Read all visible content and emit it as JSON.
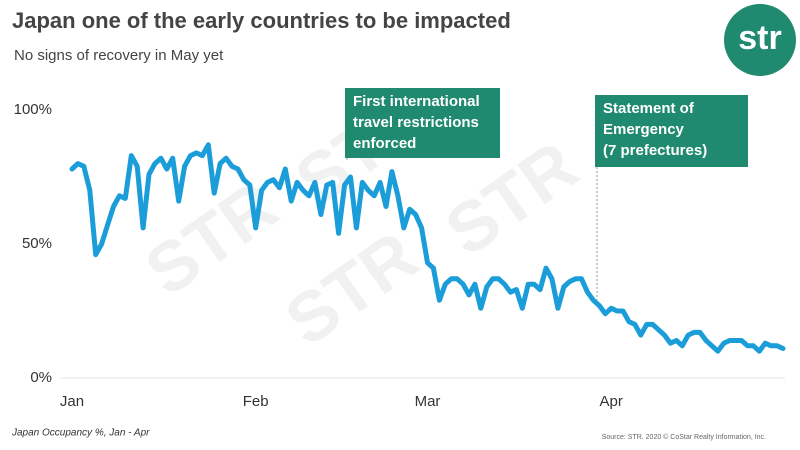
{
  "chart_data": {
    "type": "line",
    "title": "Japan one of the early countries to be impacted",
    "subtitle": "No signs of recovery in May yet",
    "footnote": "Japan Occupancy %, Jan - Apr",
    "source": "Source: STR. 2020 © CoStar Realty Information, Inc.",
    "logo": "str",
    "watermark": "STR",
    "annotations": [
      {
        "lines": [
          "First international",
          "travel restrictions",
          "enforced"
        ]
      },
      {
        "lines": [
          "Statement of",
          "Emergency",
          "(7 prefectures)"
        ]
      }
    ],
    "categories": [
      "Jan",
      null,
      null,
      null,
      null,
      null,
      null,
      null,
      null,
      null,
      null,
      null,
      null,
      null,
      null,
      null,
      null,
      null,
      null,
      null,
      null,
      null,
      null,
      null,
      null,
      null,
      null,
      null,
      null,
      null,
      null,
      "Feb",
      null,
      null,
      null,
      null,
      null,
      null,
      null,
      null,
      null,
      null,
      null,
      null,
      null,
      null,
      null,
      null,
      null,
      null,
      null,
      null,
      null,
      null,
      null,
      null,
      null,
      null,
      null,
      null,
      "Mar",
      null,
      null,
      null,
      null,
      null,
      null,
      null,
      null,
      null,
      null,
      null,
      null,
      null,
      null,
      null,
      null,
      null,
      null,
      null,
      null,
      null,
      null,
      null,
      null,
      null,
      null,
      null,
      null,
      null,
      null,
      "Apr",
      null,
      null,
      null,
      null,
      null,
      null,
      null,
      null,
      null,
      null,
      null,
      null,
      null,
      null,
      null,
      null,
      null,
      null,
      null,
      null,
      null,
      null,
      null,
      null,
      null,
      null,
      null,
      null,
      null
    ],
    "values": [
      78,
      80,
      79,
      70,
      46,
      50,
      57,
      64,
      68,
      67,
      83,
      79,
      56,
      76,
      80,
      82,
      78,
      82,
      66,
      79,
      83,
      84,
      83,
      87,
      69,
      80,
      82,
      79,
      78,
      74,
      72,
      56,
      70,
      73,
      74,
      71,
      78,
      66,
      73,
      70,
      68,
      73,
      61,
      72,
      73,
      54,
      72,
      75,
      56,
      73,
      70,
      68,
      73,
      64,
      77,
      68,
      56,
      63,
      61,
      56,
      43,
      41,
      29,
      35,
      37,
      37,
      35,
      31,
      35,
      26,
      34,
      37,
      37,
      35,
      32,
      33,
      26,
      35,
      35,
      33,
      41,
      37,
      26,
      34,
      36,
      37,
      37,
      32,
      29,
      27,
      24,
      26,
      25,
      25,
      21,
      20,
      16,
      20,
      20,
      18,
      16,
      13,
      14,
      12,
      16,
      17,
      17,
      14,
      12,
      10,
      13,
      14,
      14,
      14,
      12,
      12,
      10,
      13,
      12,
      12,
      11
    ],
    "color": "#1b9dd9",
    "ylim": [
      0,
      100
    ],
    "yticks": [
      {
        "value": 0,
        "label": "0%"
      },
      {
        "value": 50,
        "label": "50%"
      },
      {
        "value": 100,
        "label": "100%"
      }
    ],
    "grid": false
  }
}
